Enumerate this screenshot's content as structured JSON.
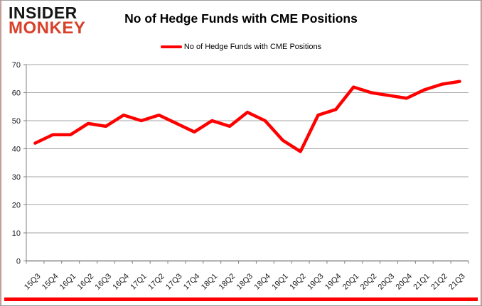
{
  "logo": {
    "line1": "INSIDER",
    "line2": "MONKEY"
  },
  "header": {
    "title": "No of Hedge Funds with CME Positions"
  },
  "legend": {
    "label": "No of Hedge Funds with CME Positions"
  },
  "colors": {
    "line": "#ff0000",
    "logo_black": "#151515",
    "logo_red": "#d8402a",
    "grid": "#a6a6a6",
    "axis": "#808080",
    "bottom_bar": "#fe0000",
    "label_text": "#1a1a1a"
  },
  "chart_data": {
    "type": "line",
    "title": "No of Hedge Funds with CME Positions",
    "xlabel": "",
    "ylabel": "",
    "categories": [
      "15Q3",
      "15Q4",
      "16Q1",
      "16Q2",
      "16Q3",
      "16Q4",
      "17Q1",
      "17Q2",
      "17Q3",
      "17Q4",
      "18Q1",
      "18Q2",
      "18Q3",
      "18Q4",
      "19Q1",
      "19Q2",
      "19Q3",
      "19Q4",
      "20Q1",
      "20Q2",
      "20Q3",
      "20Q4",
      "21Q1",
      "21Q2",
      "21Q3"
    ],
    "series": [
      {
        "name": "No of Hedge Funds with CME Positions",
        "color": "#ff0000",
        "values": [
          42,
          45,
          45,
          49,
          48,
          52,
          50,
          52,
          49,
          46,
          50,
          48,
          53,
          50,
          43,
          39,
          52,
          54,
          62,
          60,
          59,
          58,
          61,
          63,
          64
        ]
      }
    ],
    "ylim": [
      0,
      70
    ],
    "yticks": [
      0,
      10,
      20,
      30,
      40,
      50,
      60,
      70
    ],
    "grid": true,
    "legend_position": "top-center"
  }
}
